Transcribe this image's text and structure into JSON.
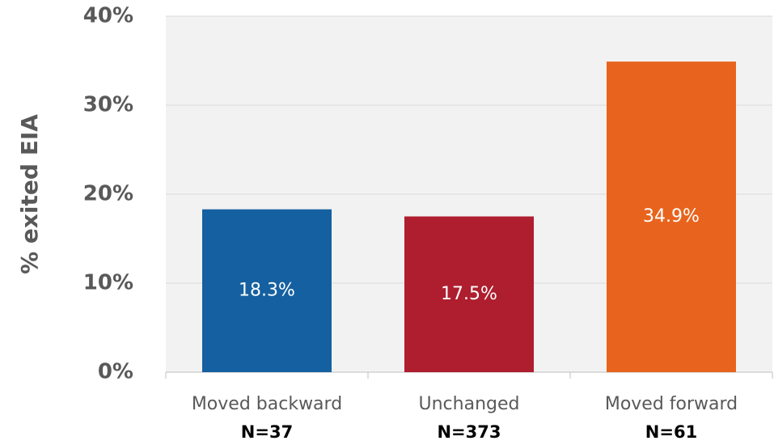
{
  "chart_data": {
    "type": "bar",
    "y_axis_label": "% exited EIA",
    "categories": [
      "Moved backward",
      "Unchanged",
      "Moved forward"
    ],
    "category_notes": [
      "N=37",
      "N=373",
      "N=61"
    ],
    "values": [
      18.3,
      17.5,
      34.9
    ],
    "value_labels": [
      "18.3%",
      "17.5%",
      "34.9%"
    ],
    "colors": [
      "#1560a0",
      "#ae1e2e",
      "#e8641e"
    ],
    "ylim": [
      0,
      40
    ],
    "yticks": [
      {
        "value": 0,
        "label": "0%"
      },
      {
        "value": 10,
        "label": "10%"
      },
      {
        "value": 20,
        "label": "20%"
      },
      {
        "value": 30,
        "label": "30%"
      },
      {
        "value": 40,
        "label": "40%"
      }
    ],
    "grid": true
  }
}
